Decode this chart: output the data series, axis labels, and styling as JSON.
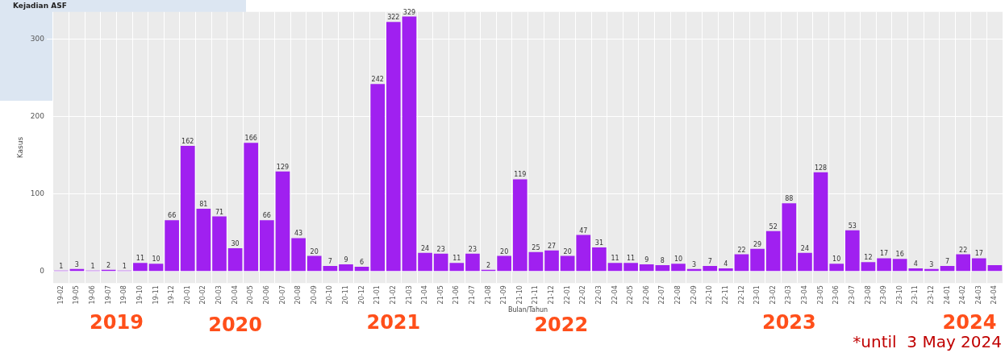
{
  "chart_data": {
    "type": "bar",
    "title": "Kejadian ASF",
    "xlabel": "Bulan/Tahun",
    "ylabel": "Kasus",
    "categories": [
      "19-02",
      "19-05",
      "19-06",
      "19-07",
      "19-08",
      "19-10",
      "19-11",
      "19-12",
      "20-01",
      "20-02",
      "20-03",
      "20-04",
      "20-05",
      "20-06",
      "20-07",
      "20-08",
      "20-09",
      "20-10",
      "20-11",
      "20-12",
      "21-01",
      "21-02",
      "21-03",
      "21-04",
      "21-05",
      "21-06",
      "21-07",
      "21-08",
      "21-09",
      "21-10",
      "21-11",
      "21-12",
      "22-01",
      "22-02",
      "22-03",
      "22-04",
      "22-05",
      "22-06",
      "22-07",
      "22-08",
      "22-09",
      "22-10",
      "22-11",
      "22-12",
      "23-01",
      "23-02",
      "23-03",
      "23-04",
      "23-05",
      "23-06",
      "23-07",
      "23-08",
      "23-09",
      "23-10",
      "23-11",
      "23-12",
      "24-01",
      "24-02",
      "24-03",
      "24-04"
    ],
    "values": [
      1,
      3,
      1,
      2,
      1,
      11,
      10,
      66,
      162,
      81,
      71,
      30,
      166,
      66,
      129,
      43,
      20,
      7,
      9,
      6,
      242,
      322,
      329,
      24,
      23,
      11,
      23,
      2,
      20,
      119,
      25,
      27,
      20,
      47,
      31,
      11,
      11,
      9,
      8,
      10,
      3,
      7,
      4,
      22,
      29,
      52,
      88,
      24,
      128,
      10,
      53,
      12,
      17,
      16,
      4,
      3,
      7,
      22,
      17,
      8
    ],
    "value_labels": [
      "1",
      "3",
      "1",
      "2",
      "1",
      "11",
      "10",
      "66",
      "162",
      "81",
      "71",
      "30",
      "166",
      "66",
      "129",
      "43",
      "20",
      "7",
      "9",
      "6",
      "242",
      "322",
      "329",
      "24",
      "23",
      "11",
      "23",
      "2",
      "20",
      "119",
      "25",
      "27",
      "20",
      "47",
      "31",
      "11",
      "11",
      "9",
      "8",
      "10",
      "3",
      "7",
      "4",
      "22",
      "29",
      "52",
      "88",
      "24",
      "128",
      "10",
      "53",
      "12",
      "17",
      "16",
      "4",
      "3",
      "7",
      "22",
      "17",
      null
    ],
    "color": "#a020f0",
    "ylim": [
      -15,
      335
    ],
    "yticks": [
      0,
      100,
      200,
      300
    ],
    "grid": true,
    "legend": false,
    "annotations": [
      "2019",
      "2020",
      "2021",
      "2022",
      "2023",
      "2024",
      "*until  3 May 2024"
    ]
  }
}
